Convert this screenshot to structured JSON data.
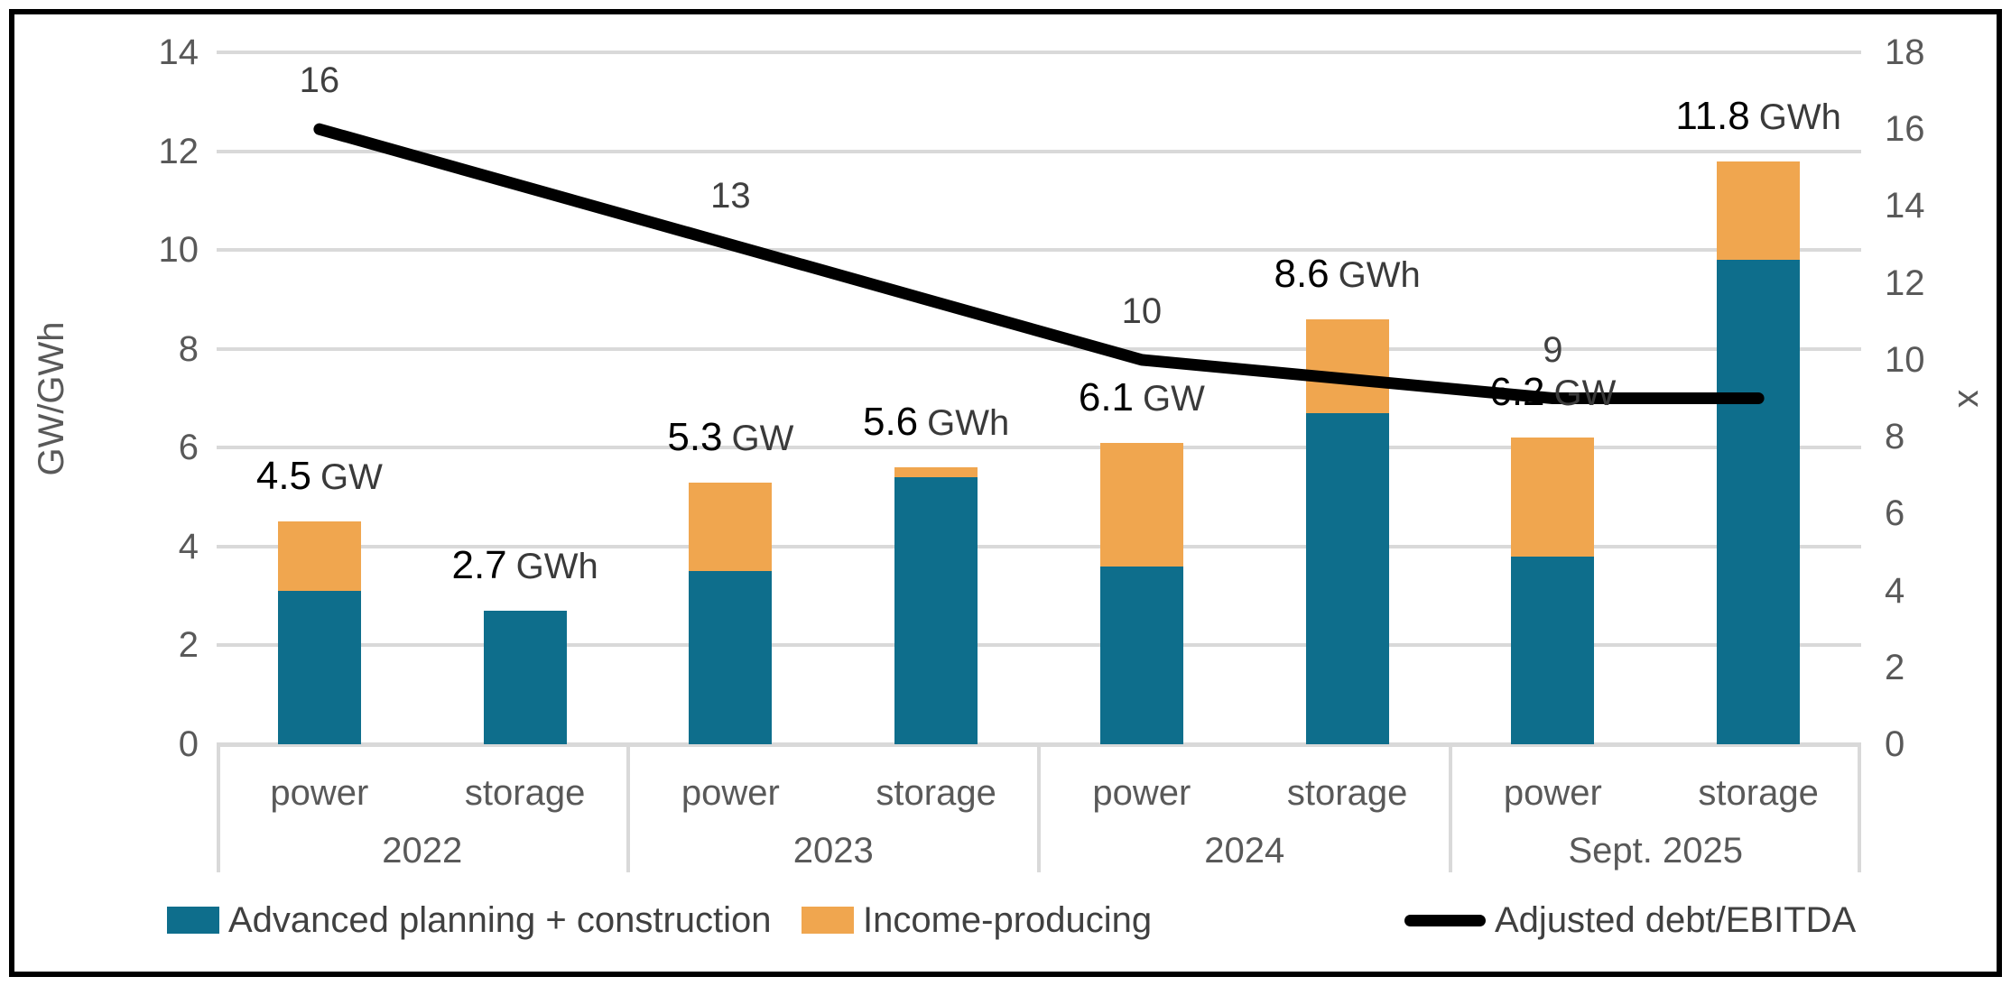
{
  "colors": {
    "advanced_planning_construction": "#0E6E8C",
    "income_producing": "#F0A64F",
    "debt_line": "#000000",
    "gridline": "#D9D9D9",
    "axis_text": "#595959",
    "label_text": "#404040",
    "bar_number": "#000000"
  },
  "axes": {
    "left": {
      "title": "GW/GWh",
      "max": 14,
      "ticks": [
        "14",
        "12",
        "10",
        "8",
        "6",
        "4",
        "2",
        "0"
      ],
      "tick_values": [
        14,
        12,
        10,
        8,
        6,
        4,
        2,
        0
      ]
    },
    "right": {
      "title": "x",
      "max": 18,
      "ticks": [
        "18",
        "16",
        "14",
        "12",
        "10",
        "8",
        "6",
        "4",
        "2",
        "0"
      ],
      "tick_values": [
        18,
        16,
        14,
        12,
        10,
        8,
        6,
        4,
        2,
        0
      ]
    }
  },
  "chart_data": {
    "type": "bar",
    "subtype": "stacked-bars-with-line",
    "title": "",
    "xlabel": "",
    "ylabel_left": "GW/GWh",
    "ylabel_right": "x",
    "ylim_left": [
      0,
      14
    ],
    "ylim_right": [
      0,
      18
    ],
    "grid": true,
    "legend_position": "bottom",
    "groups": [
      {
        "year": "2022",
        "bars": [
          {
            "category": "power",
            "segments": {
              "advanced_planning_construction": 3.1,
              "income_producing": 1.4
            },
            "total": 4.5,
            "label": "4.5",
            "unit": "GW"
          },
          {
            "category": "storage",
            "segments": {
              "advanced_planning_construction": 2.7,
              "income_producing": 0.0
            },
            "total": 2.7,
            "label": "2.7",
            "unit": "GWh"
          }
        ]
      },
      {
        "year": "2023",
        "bars": [
          {
            "category": "power",
            "segments": {
              "advanced_planning_construction": 3.5,
              "income_producing": 1.8
            },
            "total": 5.3,
            "label": "5.3",
            "unit": "GW"
          },
          {
            "category": "storage",
            "segments": {
              "advanced_planning_construction": 5.4,
              "income_producing": 0.2
            },
            "total": 5.6,
            "label": "5.6",
            "unit": "GWh"
          }
        ]
      },
      {
        "year": "2024",
        "bars": [
          {
            "category": "power",
            "segments": {
              "advanced_planning_construction": 3.6,
              "income_producing": 2.5
            },
            "total": 6.1,
            "label": "6.1",
            "unit": "GW"
          },
          {
            "category": "storage",
            "segments": {
              "advanced_planning_construction": 6.7,
              "income_producing": 1.9
            },
            "total": 8.6,
            "label": "8.6",
            "unit": "GWh"
          }
        ]
      },
      {
        "year": "Sept. 2025",
        "bars": [
          {
            "category": "power",
            "segments": {
              "advanced_planning_construction": 3.8,
              "income_producing": 2.4
            },
            "total": 6.2,
            "label": "6.2",
            "unit": "GW"
          },
          {
            "category": "storage",
            "segments": {
              "advanced_planning_construction": 9.8,
              "income_producing": 2.0
            },
            "total": 11.8,
            "label": "11.8",
            "unit": "GWh"
          }
        ]
      }
    ],
    "line_series": {
      "name": "Adjusted debt/EBITDA",
      "axis": "right",
      "values": [
        16,
        13,
        10,
        9
      ],
      "labels": [
        "16",
        "13",
        "10",
        "9"
      ],
      "anchored_at": "power bar centers",
      "extends_flat_to": "last storage bar center"
    }
  },
  "legend": {
    "items": [
      {
        "label": "Advanced planning + construction",
        "swatch": "teal-rect"
      },
      {
        "label": "Income-producing",
        "swatch": "orange-rect"
      },
      {
        "label": "Adjusted debt/EBITDA",
        "swatch": "black-line"
      }
    ]
  }
}
